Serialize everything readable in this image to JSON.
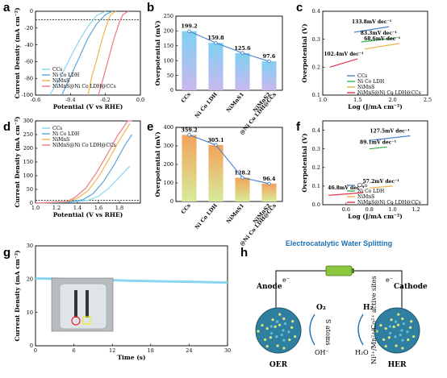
{
  "colors": {
    "ccs": "#8ad6f0",
    "nico": "#5aa6d8",
    "nimns": "#f3b24d",
    "composite": "#f07a82",
    "line_blue": "#4a80c8",
    "green": "#2fb84a",
    "red": "#e0344a",
    "schematic_blue": "#1f6fb5"
  },
  "panels": {
    "a": {
      "letter": "a",
      "chart_data": {
        "type": "line",
        "xlabel": "Potential (V vs RHE)",
        "ylabel": "Current Density (mA cm⁻²)",
        "xlim": [
          -0.6,
          0.0
        ],
        "ylim": [
          -100,
          0
        ],
        "xticks": [
          "-0.6",
          "-0.4",
          "-0.2",
          "0.0"
        ],
        "yticks": [
          "-100",
          "-80",
          "-60",
          "-40",
          "-20",
          "0"
        ],
        "dashed_y": -10,
        "legend": [
          "CCs",
          "Ni Co LDH",
          "NiMnS",
          "NiMnS@Ni Co LDH@CCs"
        ],
        "series": [
          {
            "name": "CCs",
            "x": [
              -0.52,
              -0.46,
              -0.4,
              -0.35,
              -0.3,
              -0.25,
              -0.2
            ],
            "y": [
              -100,
              -80,
              -55,
              -35,
              -18,
              -5,
              0
            ]
          },
          {
            "name": "Ni Co LDH",
            "x": [
              -0.45,
              -0.4,
              -0.35,
              -0.3,
              -0.25,
              -0.2,
              -0.16
            ],
            "y": [
              -100,
              -78,
              -55,
              -32,
              -15,
              -4,
              0
            ]
          },
          {
            "name": "NiMnS",
            "x": [
              -0.3,
              -0.28,
              -0.25,
              -0.22,
              -0.19,
              -0.17,
              -0.14
            ],
            "y": [
              -100,
              -80,
              -58,
              -34,
              -14,
              -4,
              0
            ]
          },
          {
            "name": "NiMnS@Ni Co LDH@CCs",
            "x": [
              -0.24,
              -0.21,
              -0.18,
              -0.15,
              -0.12,
              -0.1,
              -0.07
            ],
            "y": [
              -100,
              -78,
              -55,
              -32,
              -13,
              -4,
              0
            ]
          }
        ]
      }
    },
    "b": {
      "letter": "b",
      "chart_data": {
        "type": "bar",
        "ylabel": "Overpotential (mV)",
        "ylim": [
          0,
          250
        ],
        "yticks": [
          "0",
          "50",
          "100",
          "150",
          "200",
          "250"
        ],
        "categories": [
          "CCs",
          "Ni Co LDH",
          "NiMnS1",
          "NiMnS2\n@Ni Co LDH@CCs"
        ],
        "values": [
          199.2,
          159.8,
          125.6,
          97.6
        ],
        "labels": [
          "199.2",
          "159.8",
          "125.6",
          "97.6"
        ]
      }
    },
    "c": {
      "letter": "c",
      "chart_data": {
        "type": "line",
        "xlabel": "Log (J/mA cm⁻²)",
        "ylabel": "Overpotential (V)",
        "xlim": [
          1.0,
          2.5
        ],
        "ylim": [
          0.1,
          0.4
        ],
        "xticks": [
          "1.0",
          "1.5",
          "2.0",
          "2.5"
        ],
        "yticks": [
          "0.1",
          "0.2",
          "0.3",
          "0.4"
        ],
        "legend": [
          "CCs",
          "Ni Co LDH",
          "NiMnS",
          "NiMnS@Ni Co LDH@CCs"
        ],
        "series": [
          {
            "name": "CCs",
            "x": [
              1.45,
              1.95
            ],
            "y": [
              0.325,
              0.345
            ],
            "slope_label": "133.8mV dec⁻¹"
          },
          {
            "name": "Ni Co LDH",
            "x": [
              1.55,
              2.05
            ],
            "y": [
              0.29,
              0.305
            ],
            "slope_label": "83.3mV dec⁻¹"
          },
          {
            "name": "NiMnS",
            "x": [
              1.6,
              2.1
            ],
            "y": [
              0.265,
              0.285
            ],
            "slope_label": "68.6mV dec⁻¹"
          },
          {
            "name": "NiMnS@Ni Co LDH@CCs",
            "x": [
              1.1,
              1.5
            ],
            "y": [
              0.2,
              0.23
            ],
            "slope_label": "102.4mV dec⁻¹"
          }
        ]
      }
    },
    "d": {
      "letter": "d",
      "chart_data": {
        "type": "line",
        "xlabel": "Potential (V vs RHE)",
        "ylabel": "Current Density (mA cm⁻²)",
        "xlim": [
          1.0,
          2.0
        ],
        "ylim": [
          0,
          300
        ],
        "xticks": [
          "1.0",
          "1.2",
          "1.4",
          "1.6",
          "1.8"
        ],
        "yticks": [
          "0",
          "50",
          "100",
          "150",
          "200",
          "250",
          "300"
        ],
        "dashed_y": 10,
        "legend": [
          "CCs",
          "Ni Co LDH",
          "NiMnS",
          "NiMnS@Ni Co LDH@CCs"
        ],
        "series": [
          {
            "name": "CCs",
            "x": [
              1.0,
              1.3,
              1.5,
              1.6,
              1.7,
              1.8,
              1.9
            ],
            "y": [
              0,
              3,
              10,
              25,
              55,
              95,
              135
            ]
          },
          {
            "name": "Ni Co LDH",
            "x": [
              1.0,
              1.3,
              1.45,
              1.55,
              1.65,
              1.75,
              1.85,
              1.92
            ],
            "y": [
              0,
              4,
              12,
              35,
              80,
              140,
              210,
              250
            ]
          },
          {
            "name": "NiMnS",
            "x": [
              1.0,
              1.3,
              1.4,
              1.5,
              1.6,
              1.7,
              1.8,
              1.9
            ],
            "y": [
              0,
              5,
              18,
              45,
              95,
              160,
              230,
              290
            ]
          },
          {
            "name": "NiMnS@Ni Co LDH@CCs",
            "x": [
              1.0,
              1.3,
              1.38,
              1.48,
              1.58,
              1.68,
              1.78,
              1.88,
              1.92
            ],
            "y": [
              0,
              6,
              22,
              55,
              110,
              175,
              245,
              300,
              320
            ]
          }
        ]
      }
    },
    "e": {
      "letter": "e",
      "chart_data": {
        "type": "bar",
        "ylabel": "Overpotential (mV)",
        "ylim": [
          0,
          400
        ],
        "yticks": [
          "0",
          "100",
          "200",
          "300",
          "400"
        ],
        "categories": [
          "CCs",
          "Ni Co LDH",
          "NiMnS1",
          "NiMnS2\n@Ni Co LDH@CCs"
        ],
        "values": [
          359.2,
          305.1,
          128.2,
          96.4
        ],
        "labels": [
          "359.2",
          "305.1",
          "128.2",
          "96.4"
        ]
      }
    },
    "f": {
      "letter": "f",
      "chart_data": {
        "type": "line",
        "xlabel": "Log (J/mA cm⁻²)",
        "ylabel": "Overpotential (V)",
        "xlim": [
          0.4,
          1.3
        ],
        "ylim": [
          0.0,
          0.45
        ],
        "xticks": [
          "0.6",
          "0.8",
          "1.0",
          "1.2"
        ],
        "yticks": [
          "0.0",
          "0.1",
          "0.2",
          "0.3",
          "0.4"
        ],
        "legend": [
          "CCs",
          "Ni Co LDH",
          "NiMnS",
          "NiMnS@Ni Co LDH@CCs"
        ],
        "series": [
          {
            "name": "CCs",
            "x": [
              0.8,
              1.15
            ],
            "y": [
              0.345,
              0.37
            ],
            "slope_label": "127.5mV dec⁻¹"
          },
          {
            "name": "Ni Co LDH",
            "x": [
              0.8,
              0.95
            ],
            "y": [
              0.3,
              0.31
            ],
            "slope_label": "89.1mV dec⁻¹"
          },
          {
            "name": "NiMnS",
            "x": [
              0.8,
              1.0
            ],
            "y": [
              0.09,
              0.1
            ],
            "slope_label": "57.2mV dec⁻¹"
          },
          {
            "name": "NiMnS@Ni Co LDH@CCs",
            "x": [
              0.45,
              0.75
            ],
            "y": [
              0.05,
              0.065
            ],
            "slope_label": "46.8mV dec⁻¹"
          }
        ]
      }
    },
    "g": {
      "letter": "g",
      "chart_data": {
        "type": "line",
        "xlabel": "Time (s)",
        "ylabel": "Current Density (mA cm⁻²)",
        "xlim": [
          0,
          30
        ],
        "ylim": [
          0,
          30
        ],
        "xticks": [
          "0",
          "6",
          "12",
          "18",
          "24",
          "30"
        ],
        "yticks": [
          "0",
          "10",
          "20",
          "30"
        ],
        "series": [
          {
            "name": "",
            "x": [
              0,
              3,
              6,
              9,
              12,
              15,
              18,
              21,
              24,
              27,
              30
            ],
            "y": [
              20.2,
              20.1,
              19.9,
              19.8,
              19.7,
              19.5,
              19.4,
              19.3,
              19.2,
              19.1,
              19.0
            ]
          }
        ]
      }
    },
    "h": {
      "letter": "h",
      "title": "Electrocatalytic Water Splitting",
      "anode": "Anode",
      "cathode": "Cathode",
      "oer": "OER",
      "her": "HER",
      "o2": "O₂",
      "oh": "OH⁻",
      "h2": "H₂",
      "h2o": "H₂O",
      "s_atoms": "S atoms",
      "active_sites": "Ni²⁺/Mn²⁺/Co²⁺ active sites",
      "electron": "e⁻"
    }
  }
}
